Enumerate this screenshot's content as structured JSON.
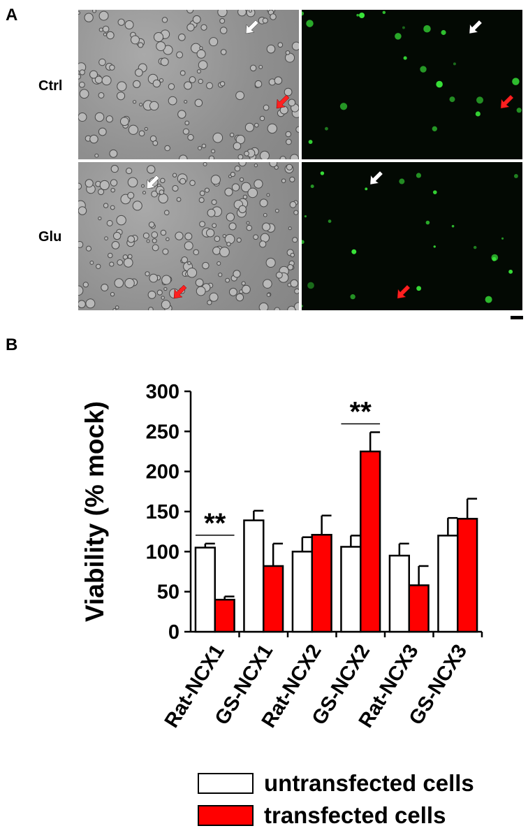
{
  "panels": {
    "a": {
      "letter": "A",
      "rows": [
        "Ctrl",
        "Glu"
      ]
    },
    "b": {
      "letter": "B"
    }
  },
  "colors": {
    "untransfected": "#ffffff",
    "transfected": "#ff0000",
    "fluor_signal": "#39e639"
  },
  "chart_data": {
    "type": "bar",
    "ylabel": "Viability (% mock)",
    "ylim": [
      0,
      300
    ],
    "yticks": [
      0,
      50,
      100,
      150,
      200,
      250,
      300
    ],
    "categories": [
      "Rat-NCX1",
      "GS-NCX1",
      "Rat-NCX2",
      "GS-NCX2",
      "Rat-NCX3",
      "GS-NCX3"
    ],
    "series": [
      {
        "name": "untransfected cells",
        "color": "#ffffff",
        "values": [
          105,
          139,
          100,
          106,
          95,
          120
        ],
        "errors": [
          5,
          12,
          18,
          14,
          15,
          22
        ]
      },
      {
        "name": "transfected cells",
        "color": "#ff0000",
        "values": [
          40,
          82,
          121,
          225,
          58,
          141
        ],
        "errors": [
          4,
          28,
          24,
          24,
          24,
          25
        ]
      }
    ],
    "annotations": [
      {
        "text": "**",
        "category": "Rat-NCX1"
      },
      {
        "text": "**",
        "category": "GS-NCX2"
      }
    ],
    "legend": "bottom"
  }
}
